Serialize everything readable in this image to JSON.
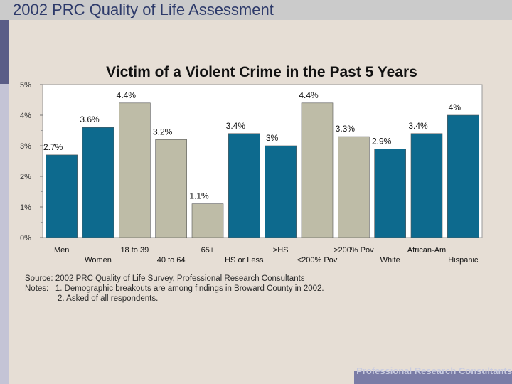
{
  "header": {
    "title": "2002 PRC Quality of Life Assessment"
  },
  "chart_data": {
    "type": "bar",
    "title": "Victim of a Violent Crime in the Past 5 Years",
    "xlabel": "",
    "ylabel": "",
    "ylim": [
      0,
      5
    ],
    "yticks": [
      "0%",
      "1%",
      "2%",
      "3%",
      "4%",
      "5%"
    ],
    "categories": [
      "Men",
      "Women",
      "18 to 39",
      "40 to 64",
      "65+",
      "HS or Less",
      ">HS",
      "<200% Pov",
      ">200% Pov",
      "White",
      "African-Am",
      "Hispanic"
    ],
    "values": [
      2.7,
      3.6,
      4.4,
      3.2,
      1.1,
      3.4,
      3.0,
      4.4,
      3.3,
      2.9,
      3.4,
      4.0
    ],
    "data_labels": [
      "2.7%",
      "3.6%",
      "4.4%",
      "3.2%",
      "1.1%",
      "3.4%",
      "3%",
      "4.4%",
      "3.3%",
      "2.9%",
      "3.4%",
      "4%"
    ],
    "groups": [
      "blue",
      "blue",
      "tan",
      "tan",
      "tan",
      "blue",
      "blue",
      "tan",
      "tan",
      "blue",
      "blue",
      "blue"
    ],
    "colors": {
      "blue": "#0d6a8e",
      "tan": "#bebca7"
    }
  },
  "notes": {
    "source": "Source: 2002 PRC Quality of Life Survey, Professional Research Consultants",
    "note1": "Notes:   1. Demographic breakouts are among findings in Broward County in 2002.",
    "note2": "2. Asked of all respondents."
  },
  "footer": {
    "brand": "Professional Research Consultants"
  }
}
